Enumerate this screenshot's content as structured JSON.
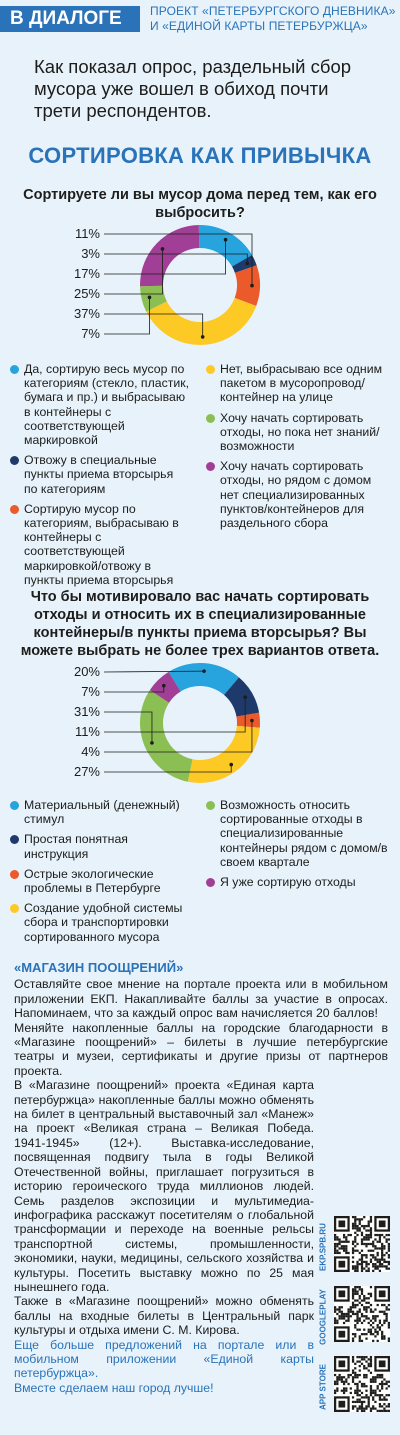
{
  "header": {
    "badge": "В ДИАЛОГЕ",
    "project_line1": "ПРОЕКТ «ПЕТЕРБУРГСКОГО ДНЕВНИКА»",
    "project_line2": "И «ЕДИНОЙ КАРТЫ ПЕТЕРБУРЖЦА»"
  },
  "lead": "Как показал опрос, раздельный сбор мусора уже вошел в обиход почти трети респондентов.",
  "main_title": "СОРТИРОВКА КАК ПРИВЫЧКА",
  "colors": {
    "light_blue": "#27a3dd",
    "navy": "#1e3a6b",
    "orange": "#ea5a2a",
    "yellow": "#fcc925",
    "green": "#8cbf53",
    "purple": "#a13f97",
    "accent": "#2a73b9"
  },
  "chart_data": [
    {
      "type": "pie",
      "donut": true,
      "title": "Сортируете ли вы мусор дома перед тем, как его выбросить?",
      "slices": [
        {
          "label": "Да, сортирую весь мусор по категориям (стекло, пластик, бумага и пр.) и выбрасываю в контейнеры с соответствующей маркировкой",
          "value": 17,
          "value_label": "17%",
          "color": "#27a3dd"
        },
        {
          "label": "Отвожу в специальные пункты приема вторсырья по категориям",
          "value": 3,
          "value_label": "3%",
          "color": "#1e3a6b"
        },
        {
          "label": "Сортирую мусор по категориям, выбрасываю в контейнеры с соответствующей маркировкой/отвожу в пункты приема вторсырья",
          "value": 11,
          "value_label": "11%",
          "color": "#ea5a2a"
        },
        {
          "label": "Нет, выбрасываю все одним пакетом в мусоропровод/контейнер на улице",
          "value": 37,
          "value_label": "37%",
          "color": "#fcc925"
        },
        {
          "label": "Хочу начать сортировать отходы, но пока нет знаний/возможности",
          "value": 7,
          "value_label": "7%",
          "color": "#8cbf53"
        },
        {
          "label": "Хочу начать сортировать отходы, но рядом с домом нет специализированных пунктов/контейнеров для раздельного сбора",
          "value": 25,
          "value_label": "25%",
          "color": "#a13f97"
        }
      ],
      "label_order": [
        "11%",
        "3%",
        "17%",
        "25%",
        "37%",
        "7%"
      ]
    },
    {
      "type": "pie",
      "donut": true,
      "title": "Что бы мотивировало вас начать сортировать отходы и относить их в специализированные контейнеры/в пункты приема вторсырья? Вы можете выбрать не более трех вариантов ответа.",
      "slices": [
        {
          "label": "Материальный (денежный) стимул",
          "value": 20,
          "value_label": "20%",
          "color": "#27a3dd"
        },
        {
          "label": "Простая понятная инструкция",
          "value": 11,
          "value_label": "11%",
          "color": "#1e3a6b"
        },
        {
          "label": "Острые экологические проблемы в Петербурге",
          "value": 4,
          "value_label": "4%",
          "color": "#ea5a2a"
        },
        {
          "label": "Создание удобной системы сбора и транспортировки сортированного мусора",
          "value": 27,
          "value_label": "27%",
          "color": "#fcc925"
        },
        {
          "label": "Возможность относить сортированные отходы в специализированные контейнеры рядом с домом/в своем квартале",
          "value": 31,
          "value_label": "31%",
          "color": "#8cbf53"
        },
        {
          "label": "Я уже сортирую отходы",
          "value": 7,
          "value_label": "7%",
          "color": "#a13f97"
        }
      ],
      "label_order": [
        "20%",
        "7%",
        "31%",
        "11%",
        "4%",
        "27%"
      ]
    }
  ],
  "legend1": {
    "left": [
      {
        "text": "Да, сортирую весь мусор по категориям (стекло, пластик, бумага и пр.) и выбрасываю в контейнеры с соответствующей маркировкой",
        "color": "#27a3dd"
      },
      {
        "text": "Отвожу в специальные пункты приема вторсырья по категориям",
        "color": "#1e3a6b"
      },
      {
        "text": "Сортирую мусор по категориям, выбрасываю в контейнеры с соответствующей маркировкой/отвожу в пункты приема вторсырья",
        "color": "#ea5a2a"
      }
    ],
    "right": [
      {
        "text": "Нет, выбрасываю все одним пакетом в мусоропровод/контейнер на улице",
        "color": "#fcc925"
      },
      {
        "text": "Хочу начать сортировать отходы, но пока нет знаний/возможности",
        "color": "#8cbf53"
      },
      {
        "text": "Хочу начать сортировать отходы, но рядом с домом нет специализированных пунктов/контейнеров для раздельного сбора",
        "color": "#a13f97"
      }
    ]
  },
  "legend2": {
    "left": [
      {
        "text": "Материальный (денежный) стимул",
        "color": "#27a3dd"
      },
      {
        "text": "Простая понятная инструкция",
        "color": "#1e3a6b"
      },
      {
        "text": "Острые экологические проблемы в Петербурге",
        "color": "#ea5a2a"
      },
      {
        "text": "Создание удобной системы сбора и транспортировки сортированного мусора",
        "color": "#fcc925"
      }
    ],
    "right": [
      {
        "text": "Возможность относить сортированные отходы в специализированные контейнеры рядом с домом/в своем квартале",
        "color": "#8cbf53"
      },
      {
        "text": "Я уже сортирую отходы",
        "color": "#a13f97"
      }
    ]
  },
  "shop": {
    "title": "«МАГАЗИН ПООЩРЕНИЙ»",
    "p1": "Оставляйте свое мнение на портале проекта или в мобильном приложении ЕКП. Накапливайте баллы за участие в опросах. Напоминаем, что за каждый опрос вам начисляется 20 баллов!",
    "p2": "Меняйте накопленные баллы на городские благодарности в «Магазине поощрений» – билеты в лучшие петербургские театры и музеи, сертификаты и другие призы от партнеров проекта.",
    "p3": "В «Магазине поощрений» проекта «Единая карта петербуржца» накопленные баллы можно обменять на билет в центральный выставочный зал «Манеж» на проект «Великая страна – Великая Победа. 1941-1945» (12+). Выставка-исследование, посвященная подвигу тыла в годы Великой Отечественной войны, приглашает погрузиться в историю героического труда миллионов людей. Семь разделов экспозиции и мультимедиа-инфографика расскажут посетителям о глобальной трансформации и переходе на военные рельсы транспортной системы, промышленности, экономики, науки, медицины, сельского хозяйства и культуры. Посетить выставку можно по 25 мая нынешнего года.",
    "p4": "Также в «Магазине поощрений» можно обменять баллы на входные билеты в Центральный парк культуры и отдыха имени С. М. Кирова.",
    "p5": "Еще больше предложений на портале или в мобильном приложении «Единой карты петербуржца».",
    "p6": "Вместе сделаем наш город лучше!"
  },
  "qr": {
    "label1": "EKP.SPB.RU",
    "label2": "GOOGLEPLAY",
    "label3": "APP STORE"
  }
}
